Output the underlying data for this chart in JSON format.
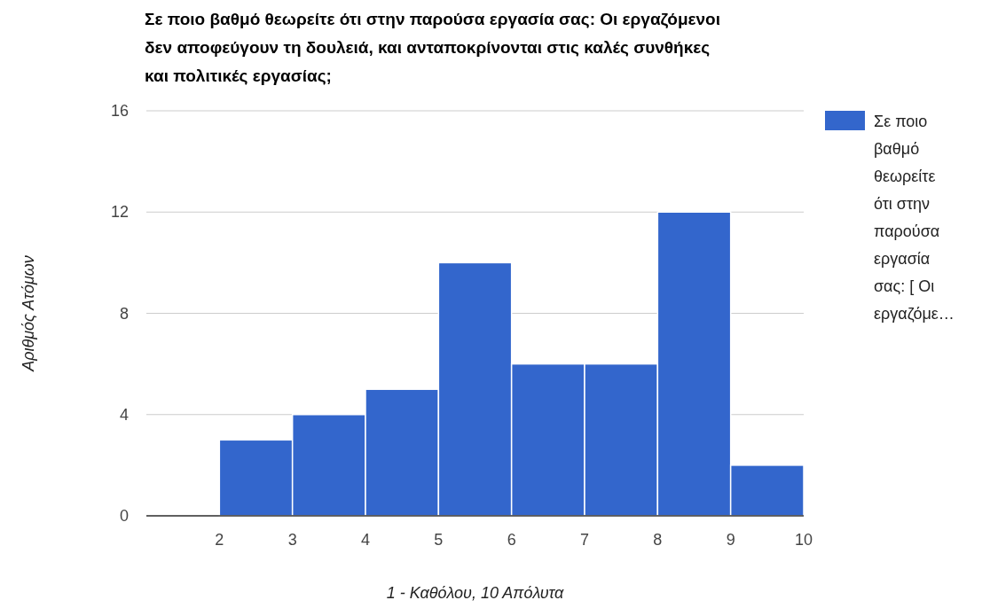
{
  "chart_data": {
    "type": "histogram",
    "title": "Σε ποιο βαθμό θεωρείτε ότι στην παρούσα εργασία σας: Οι εργαζόμενοι δεν αποφεύγουν τη δουλειά, και ανταποκρίνονται στις καλές συνθήκες και πολιτικές εργασίας;",
    "xlabel": "1 - Καθόλου, 10 Απόλυτα",
    "ylabel": "Αριθμός Ατόμων",
    "bins": [
      1,
      2,
      3,
      4,
      5,
      6,
      7,
      8,
      9,
      10
    ],
    "series": [
      {
        "name": "Σε ποιο βαθμό θεωρείτε ότι στην παρούσα εργασία σας: [ Οι εργαζόμε…",
        "color": "#3366cc",
        "values": [
          0,
          3,
          4,
          5,
          10,
          6,
          6,
          12,
          2
        ]
      }
    ],
    "xlim": [
      1,
      10
    ],
    "xticks": [
      2,
      3,
      4,
      5,
      6,
      7,
      8,
      9,
      10
    ],
    "ylim": [
      0,
      16
    ],
    "yticks": [
      0,
      4,
      8,
      12,
      16
    ],
    "grid": "y",
    "legend": "right"
  }
}
